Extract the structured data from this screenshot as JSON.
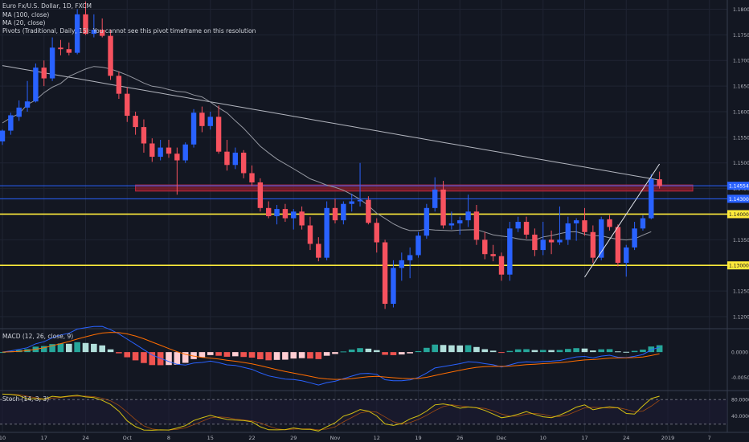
{
  "chart_data": {
    "type": "candlestick",
    "title": "Euro Fx/U.S. Dollar, 1D, FXCM",
    "indicators": [
      "MA (100, close)",
      "MA (20, close)",
      "Pivots (Traditional, Daily, 15): You cannot see this pivot timeframe on this resolution"
    ],
    "macd_label": "MACD (12, 26, close, 9)",
    "stoch_label": "Stoch (14, 3, 3)",
    "price_axis_labels": [
      "1.18000",
      "1.17500",
      "1.17000",
      "1.16500",
      "1.16000",
      "1.15500",
      "1.15000",
      "1.14500",
      "1.14000",
      "1.13500",
      "1.13000",
      "1.12500",
      "1.12000"
    ],
    "price_range": [
      1.1178,
      1.1818
    ],
    "price_badges": [
      {
        "label": "1.14554",
        "value": 1.14554,
        "color": "#2962ff"
      },
      {
        "label": "1.14300",
        "value": 1.143,
        "color": "#2962ff"
      },
      {
        "label": "1.14000",
        "value": 1.14,
        "color": "#ffeb3b"
      },
      {
        "label": "1.13000",
        "value": 1.13,
        "color": "#ffeb3b"
      }
    ],
    "macd_axis_labels": [
      "0.0000",
      "-0.0050"
    ],
    "macd_range": [
      -0.0075,
      0.0045
    ],
    "stoch_axis_labels": [
      "80.0000",
      "40.0000"
    ],
    "stoch_range": [
      0,
      100
    ],
    "x_tick_labels": [
      "10",
      "17",
      "24",
      "Oct",
      "8",
      "15",
      "22",
      "29",
      "Nov",
      "12",
      "19",
      "26",
      "Dec",
      "10",
      "17",
      "24",
      "2019",
      "7"
    ],
    "x_tick_index": [
      0,
      5,
      10,
      15,
      20,
      25,
      30,
      35,
      40,
      45,
      50,
      55,
      60,
      65,
      70,
      75,
      80,
      85
    ],
    "horizontal_lines": [
      {
        "value": 1.14,
        "color": "#ffeb3b"
      },
      {
        "value": 1.13,
        "color": "#ffeb3b"
      },
      {
        "value": 1.14554,
        "color": "#2962ff"
      },
      {
        "value": 1.143,
        "color": "#2962ff"
      }
    ],
    "zone": {
      "top": 1.1457,
      "bottom": 1.1445,
      "from_index": 16,
      "to_index": 83,
      "color": "#8b1c2b"
    },
    "trendline": {
      "from": [
        70,
        1.1277
      ],
      "to": [
        77,
        1.1483
      ]
    },
    "candles": [
      {
        "o": 1.1542,
        "h": 1.1565,
        "l": 1.1535,
        "c": 1.1563
      },
      {
        "o": 1.1563,
        "h": 1.1598,
        "l": 1.1555,
        "c": 1.1593
      },
      {
        "o": 1.159,
        "h": 1.1622,
        "l": 1.1582,
        "c": 1.1608
      },
      {
        "o": 1.1608,
        "h": 1.166,
        "l": 1.16,
        "c": 1.162
      },
      {
        "o": 1.162,
        "h": 1.1694,
        "l": 1.1618,
        "c": 1.1686
      },
      {
        "o": 1.1686,
        "h": 1.17,
        "l": 1.165,
        "c": 1.1665
      },
      {
        "o": 1.1665,
        "h": 1.1745,
        "l": 1.166,
        "c": 1.1725
      },
      {
        "o": 1.1725,
        "h": 1.174,
        "l": 1.171,
        "c": 1.1722
      },
      {
        "o": 1.1722,
        "h": 1.1735,
        "l": 1.171,
        "c": 1.1715
      },
      {
        "o": 1.1715,
        "h": 1.18,
        "l": 1.1712,
        "c": 1.179
      },
      {
        "o": 1.179,
        "h": 1.1815,
        "l": 1.175,
        "c": 1.1752
      },
      {
        "o": 1.1752,
        "h": 1.179,
        "l": 1.1745,
        "c": 1.176
      },
      {
        "o": 1.176,
        "h": 1.1782,
        "l": 1.1745,
        "c": 1.1748
      },
      {
        "o": 1.1748,
        "h": 1.176,
        "l": 1.1662,
        "c": 1.167
      },
      {
        "o": 1.167,
        "h": 1.1678,
        "l": 1.1625,
        "c": 1.1635
      },
      {
        "o": 1.1635,
        "h": 1.1648,
        "l": 1.158,
        "c": 1.1592
      },
      {
        "o": 1.1592,
        "h": 1.16,
        "l": 1.1555,
        "c": 1.157
      },
      {
        "o": 1.157,
        "h": 1.1585,
        "l": 1.152,
        "c": 1.1538
      },
      {
        "o": 1.1538,
        "h": 1.1548,
        "l": 1.1502,
        "c": 1.1512
      },
      {
        "o": 1.1512,
        "h": 1.1545,
        "l": 1.1505,
        "c": 1.153
      },
      {
        "o": 1.153,
        "h": 1.1545,
        "l": 1.151,
        "c": 1.1518
      },
      {
        "o": 1.1518,
        "h": 1.153,
        "l": 1.1438,
        "c": 1.1505
      },
      {
        "o": 1.1505,
        "h": 1.154,
        "l": 1.15,
        "c": 1.1536
      },
      {
        "o": 1.1536,
        "h": 1.1605,
        "l": 1.153,
        "c": 1.1598
      },
      {
        "o": 1.1598,
        "h": 1.161,
        "l": 1.156,
        "c": 1.1572
      },
      {
        "o": 1.1572,
        "h": 1.16,
        "l": 1.1565,
        "c": 1.159
      },
      {
        "o": 1.159,
        "h": 1.1612,
        "l": 1.1518,
        "c": 1.1522
      },
      {
        "o": 1.1522,
        "h": 1.1545,
        "l": 1.1485,
        "c": 1.1496
      },
      {
        "o": 1.1496,
        "h": 1.153,
        "l": 1.1488,
        "c": 1.152
      },
      {
        "o": 1.152,
        "h": 1.1525,
        "l": 1.147,
        "c": 1.148
      },
      {
        "o": 1.148,
        "h": 1.1495,
        "l": 1.1455,
        "c": 1.1462
      },
      {
        "o": 1.1462,
        "h": 1.147,
        "l": 1.1405,
        "c": 1.1412
      },
      {
        "o": 1.1412,
        "h": 1.1425,
        "l": 1.1392,
        "c": 1.1396
      },
      {
        "o": 1.1396,
        "h": 1.1418,
        "l": 1.138,
        "c": 1.141
      },
      {
        "o": 1.141,
        "h": 1.142,
        "l": 1.1385,
        "c": 1.1392
      },
      {
        "o": 1.1392,
        "h": 1.141,
        "l": 1.137,
        "c": 1.1405
      },
      {
        "o": 1.1405,
        "h": 1.1415,
        "l": 1.137,
        "c": 1.1378
      },
      {
        "o": 1.1378,
        "h": 1.1395,
        "l": 1.133,
        "c": 1.1342
      },
      {
        "o": 1.1342,
        "h": 1.1355,
        "l": 1.1308,
        "c": 1.1315
      },
      {
        "o": 1.1315,
        "h": 1.1425,
        "l": 1.131,
        "c": 1.1412
      },
      {
        "o": 1.1412,
        "h": 1.143,
        "l": 1.1382,
        "c": 1.1388
      },
      {
        "o": 1.1388,
        "h": 1.1425,
        "l": 1.138,
        "c": 1.142
      },
      {
        "o": 1.142,
        "h": 1.144,
        "l": 1.1405,
        "c": 1.1425
      },
      {
        "o": 1.1425,
        "h": 1.15,
        "l": 1.1415,
        "c": 1.1428
      },
      {
        "o": 1.1428,
        "h": 1.1435,
        "l": 1.138,
        "c": 1.1383
      },
      {
        "o": 1.1383,
        "h": 1.1392,
        "l": 1.1325,
        "c": 1.1345
      },
      {
        "o": 1.1345,
        "h": 1.135,
        "l": 1.1215,
        "c": 1.1225
      },
      {
        "o": 1.1225,
        "h": 1.131,
        "l": 1.1218,
        "c": 1.1295
      },
      {
        "o": 1.1295,
        "h": 1.1325,
        "l": 1.127,
        "c": 1.131
      },
      {
        "o": 1.131,
        "h": 1.1335,
        "l": 1.1275,
        "c": 1.132
      },
      {
        "o": 1.132,
        "h": 1.1365,
        "l": 1.1315,
        "c": 1.1358
      },
      {
        "o": 1.1358,
        "h": 1.142,
        "l": 1.1352,
        "c": 1.1412
      },
      {
        "o": 1.1412,
        "h": 1.1472,
        "l": 1.1405,
        "c": 1.1448
      },
      {
        "o": 1.1448,
        "h": 1.1465,
        "l": 1.1372,
        "c": 1.1378
      },
      {
        "o": 1.1378,
        "h": 1.1405,
        "l": 1.137,
        "c": 1.1382
      },
      {
        "o": 1.1382,
        "h": 1.1395,
        "l": 1.136,
        "c": 1.1388
      },
      {
        "o": 1.1388,
        "h": 1.1438,
        "l": 1.1375,
        "c": 1.1405
      },
      {
        "o": 1.1405,
        "h": 1.1418,
        "l": 1.134,
        "c": 1.135
      },
      {
        "o": 1.135,
        "h": 1.1365,
        "l": 1.1312,
        "c": 1.1322
      },
      {
        "o": 1.1322,
        "h": 1.134,
        "l": 1.1308,
        "c": 1.1318
      },
      {
        "o": 1.1318,
        "h": 1.1325,
        "l": 1.127,
        "c": 1.1282
      },
      {
        "o": 1.1282,
        "h": 1.1385,
        "l": 1.127,
        "c": 1.1372
      },
      {
        "o": 1.1372,
        "h": 1.1395,
        "l": 1.1365,
        "c": 1.1385
      },
      {
        "o": 1.1385,
        "h": 1.1395,
        "l": 1.1352,
        "c": 1.136
      },
      {
        "o": 1.136,
        "h": 1.1372,
        "l": 1.1318,
        "c": 1.133
      },
      {
        "o": 1.133,
        "h": 1.1385,
        "l": 1.132,
        "c": 1.135
      },
      {
        "o": 1.135,
        "h": 1.1368,
        "l": 1.1322,
        "c": 1.1345
      },
      {
        "o": 1.1345,
        "h": 1.1415,
        "l": 1.134,
        "c": 1.135
      },
      {
        "o": 1.135,
        "h": 1.1395,
        "l": 1.134,
        "c": 1.1382
      },
      {
        "o": 1.1382,
        "h": 1.1392,
        "l": 1.1348,
        "c": 1.1388
      },
      {
        "o": 1.1388,
        "h": 1.1412,
        "l": 1.1358,
        "c": 1.1365
      },
      {
        "o": 1.1365,
        "h": 1.1378,
        "l": 1.1305,
        "c": 1.1315
      },
      {
        "o": 1.1315,
        "h": 1.1395,
        "l": 1.131,
        "c": 1.139
      },
      {
        "o": 1.139,
        "h": 1.1398,
        "l": 1.1368,
        "c": 1.1375
      },
      {
        "o": 1.1375,
        "h": 1.138,
        "l": 1.1298,
        "c": 1.1305
      },
      {
        "o": 1.1305,
        "h": 1.134,
        "l": 1.1278,
        "c": 1.1335
      },
      {
        "o": 1.1335,
        "h": 1.1385,
        "l": 1.133,
        "c": 1.1372
      },
      {
        "o": 1.1372,
        "h": 1.1398,
        "l": 1.1368,
        "c": 1.1392
      },
      {
        "o": 1.1392,
        "h": 1.1478,
        "l": 1.139,
        "c": 1.1468
      },
      {
        "o": 1.1468,
        "h": 1.1483,
        "l": 1.145,
        "c": 1.1455
      }
    ]
  }
}
